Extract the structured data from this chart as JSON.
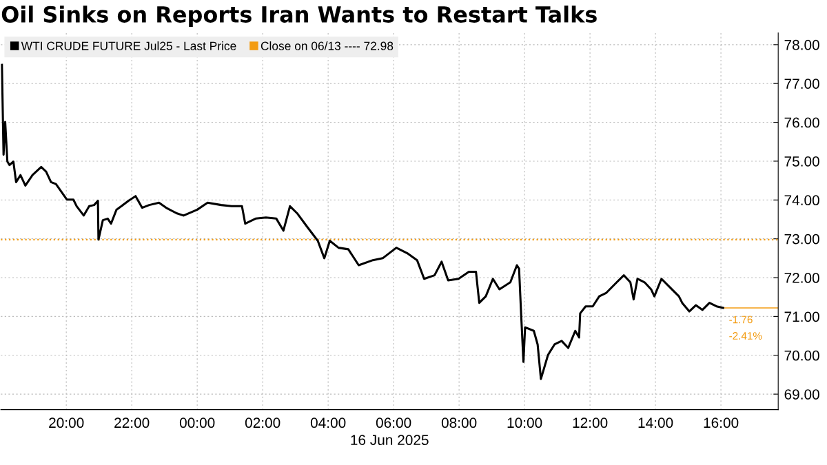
{
  "chart_data": {
    "type": "line",
    "title": "Oil Sinks on Reports Iran Wants to Restart Talks",
    "xlabel": "16 Jun 2025",
    "x": [
      "2025-06-15T18:02",
      "2025-06-15T18:05",
      "2025-06-15T18:08",
      "2025-06-15T18:12",
      "2025-06-15T18:16",
      "2025-06-15T18:23",
      "2025-06-15T18:28",
      "2025-06-15T18:36",
      "2025-06-15T18:45",
      "2025-06-15T18:58",
      "2025-06-15T19:14",
      "2025-06-15T19:23",
      "2025-06-15T19:32",
      "2025-06-15T19:41",
      "2025-06-15T20:01",
      "2025-06-15T20:13",
      "2025-06-15T20:19",
      "2025-06-15T20:32",
      "2025-06-15T20:42",
      "2025-06-15T20:51",
      "2025-06-15T20:58",
      "2025-06-15T20:59",
      "2025-06-15T21:07",
      "2025-06-15T21:16",
      "2025-06-15T21:22",
      "2025-06-15T21:32",
      "2025-06-15T21:41",
      "2025-06-15T21:54",
      "2025-06-15T22:07",
      "2025-06-15T22:19",
      "2025-06-15T22:32",
      "2025-06-15T22:50",
      "2025-06-15T23:03",
      "2025-06-15T23:22",
      "2025-06-15T23:35",
      "2025-06-16T00:00",
      "2025-06-16T00:19",
      "2025-06-16T00:44",
      "2025-06-16T01:03",
      "2025-06-16T01:22",
      "2025-06-16T01:28",
      "2025-06-16T01:47",
      "2025-06-16T02:06",
      "2025-06-16T02:25",
      "2025-06-16T02:38",
      "2025-06-16T02:50",
      "2025-06-16T03:03",
      "2025-06-16T03:22",
      "2025-06-16T03:41",
      "2025-06-16T03:53",
      "2025-06-16T04:03",
      "2025-06-16T04:19",
      "2025-06-16T04:37",
      "2025-06-16T04:56",
      "2025-06-16T05:22",
      "2025-06-16T05:40",
      "2025-06-16T06:05",
      "2025-06-16T06:25",
      "2025-06-16T06:43",
      "2025-06-16T06:56",
      "2025-06-16T07:15",
      "2025-06-16T07:28",
      "2025-06-16T07:40",
      "2025-06-16T07:59",
      "2025-06-16T08:18",
      "2025-06-16T08:31",
      "2025-06-16T08:37",
      "2025-06-16T08:49",
      "2025-06-16T09:02",
      "2025-06-16T09:14",
      "2025-06-16T09:34",
      "2025-06-16T09:46",
      "2025-06-16T09:50",
      "2025-06-16T09:54",
      "2025-06-16T09:58",
      "2025-06-16T10:01",
      "2025-06-16T10:17",
      "2025-06-16T10:24",
      "2025-06-16T10:30",
      "2025-06-16T10:43",
      "2025-06-16T10:55",
      "2025-06-16T11:08",
      "2025-06-16T11:20",
      "2025-06-16T11:33",
      "2025-06-16T11:40",
      "2025-06-16T11:42",
      "2025-06-16T11:52",
      "2025-06-16T12:05",
      "2025-06-16T12:17",
      "2025-06-16T12:30",
      "2025-06-16T12:49",
      "2025-06-16T13:02",
      "2025-06-16T13:14",
      "2025-06-16T13:20",
      "2025-06-16T13:27",
      "2025-06-16T13:40",
      "2025-06-16T13:52",
      "2025-06-16T13:58",
      "2025-06-16T14:11",
      "2025-06-16T14:30",
      "2025-06-16T14:43",
      "2025-06-16T14:49",
      "2025-06-16T15:02",
      "2025-06-16T15:14",
      "2025-06-16T15:26",
      "2025-06-16T15:39",
      "2025-06-16T15:52",
      "2025-06-16T16:04"
    ],
    "series": [
      {
        "name": "WTI CRUDE FUTURE Jul25 - Last Price",
        "color": "#000000",
        "values": [
          77.48,
          75.17,
          76.01,
          74.99,
          74.9,
          74.99,
          74.46,
          74.64,
          74.37,
          74.64,
          74.85,
          74.73,
          74.46,
          74.41,
          74.01,
          74.01,
          73.84,
          73.6,
          73.84,
          73.87,
          73.98,
          72.98,
          73.48,
          73.52,
          73.39,
          73.75,
          73.84,
          73.98,
          74.1,
          73.8,
          73.87,
          73.93,
          73.8,
          73.66,
          73.6,
          73.75,
          73.93,
          73.87,
          73.84,
          73.84,
          73.39,
          73.52,
          73.55,
          73.52,
          73.21,
          73.84,
          73.66,
          73.3,
          72.95,
          72.5,
          72.95,
          72.77,
          72.73,
          72.32,
          72.45,
          72.5,
          72.77,
          72.63,
          72.45,
          71.97,
          72.06,
          72.41,
          71.93,
          71.97,
          72.15,
          72.15,
          71.35,
          71.52,
          71.97,
          71.7,
          71.88,
          72.32,
          72.23,
          70.99,
          69.83,
          70.72,
          70.63,
          70.28,
          69.39,
          70.01,
          70.28,
          70.37,
          70.19,
          70.63,
          70.46,
          71.08,
          71.26,
          71.26,
          71.52,
          71.61,
          71.88,
          72.06,
          71.88,
          71.44,
          71.97,
          71.88,
          71.7,
          71.52,
          71.97,
          71.7,
          71.52,
          71.35,
          71.13,
          71.29,
          71.17,
          71.35,
          71.26,
          71.22
        ]
      }
    ],
    "xlim": [
      "2025-06-15T18:00",
      "2025-06-16T17:45"
    ],
    "xticks": [
      {
        "value": "2025-06-15T20:00",
        "label": "20:00"
      },
      {
        "value": "2025-06-15T22:00",
        "label": "22:00"
      },
      {
        "value": "2025-06-16T00:00",
        "label": "00:00"
      },
      {
        "value": "2025-06-16T02:00",
        "label": "02:00"
      },
      {
        "value": "2025-06-16T04:00",
        "label": "04:00"
      },
      {
        "value": "2025-06-16T06:00",
        "label": "06:00"
      },
      {
        "value": "2025-06-16T08:00",
        "label": "08:00"
      },
      {
        "value": "2025-06-16T10:00",
        "label": "10:00"
      },
      {
        "value": "2025-06-16T12:00",
        "label": "12:00"
      },
      {
        "value": "2025-06-16T14:00",
        "label": "14:00"
      },
      {
        "value": "2025-06-16T16:00",
        "label": "16:00"
      }
    ],
    "ylim": [
      68.6,
      78.3
    ],
    "yticks": [
      {
        "value": 69,
        "label": "69.00"
      },
      {
        "value": 70,
        "label": "70.00"
      },
      {
        "value": 71,
        "label": "71.00"
      },
      {
        "value": 72,
        "label": "72.00"
      },
      {
        "value": 73,
        "label": "73.00"
      },
      {
        "value": 74,
        "label": "74.00"
      },
      {
        "value": 75,
        "label": "75.00"
      },
      {
        "value": 76,
        "label": "76.00"
      },
      {
        "value": 77,
        "label": "77.00"
      },
      {
        "value": 78,
        "label": "78.00"
      }
    ],
    "ref_lines": [
      {
        "axis": "y",
        "value": 72.98,
        "label": "Close on 06/13 ---- 72.98",
        "color": "#f39c12",
        "line_style": "dotted"
      }
    ],
    "annotations": [
      {
        "text": "-1.76",
        "x": "2025-06-16T16:04",
        "y": 71.22
      },
      {
        "text": "-2.41%",
        "x": "2025-06-16T16:04",
        "y": 71.22
      }
    ],
    "grid": true,
    "legend": "top left",
    "marker": "none",
    "line_style": "solid"
  }
}
